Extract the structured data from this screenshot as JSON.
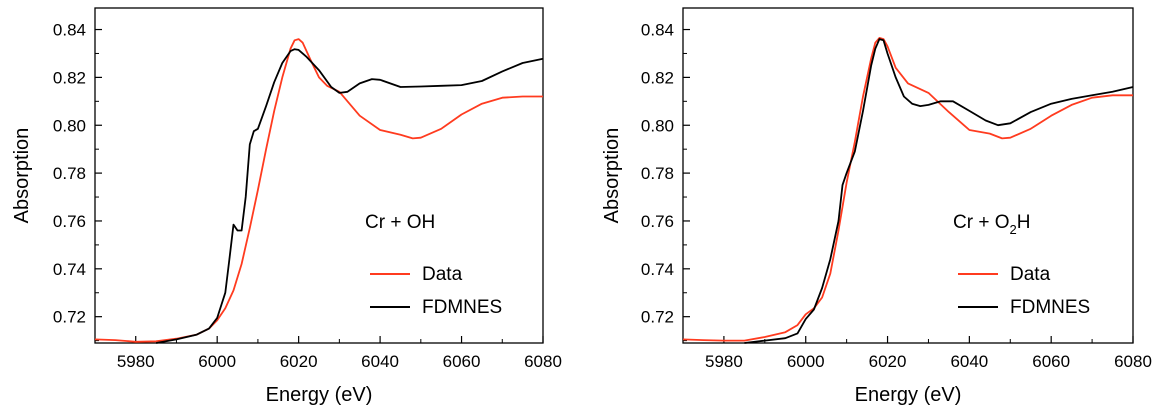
{
  "chart_data": [
    {
      "type": "line",
      "xlabel": "Energy (eV)",
      "ylabel": "Absorption",
      "xlim": [
        5970,
        6080
      ],
      "ylim": [
        0.709,
        0.849
      ],
      "xticks": [
        "5980",
        "6000",
        "6020",
        "6040",
        "6060",
        "6080"
      ],
      "yticks": [
        "0.72",
        "0.74",
        "0.76",
        "0.78",
        "0.80",
        "0.82",
        "0.84"
      ],
      "annotation": {
        "base": "Cr + OH",
        "sub": "",
        "tail": ""
      },
      "grid": false,
      "legend_position": "bottom-right",
      "series": [
        {
          "name": "Data",
          "color": "#ff3b1f",
          "points": [
            [
              5970,
              0.7105
            ],
            [
              5975,
              0.7102
            ],
            [
              5980,
              0.7095
            ],
            [
              5985,
              0.7097
            ],
            [
              5990,
              0.7108
            ],
            [
              5995,
              0.7125
            ],
            [
              5998,
              0.715
            ],
            [
              6000,
              0.7185
            ],
            [
              6002,
              0.7235
            ],
            [
              6004,
              0.731
            ],
            [
              6006,
              0.742
            ],
            [
              6008,
              0.757
            ],
            [
              6010,
              0.773
            ],
            [
              6012,
              0.79
            ],
            [
              6014,
              0.806
            ],
            [
              6016,
              0.82
            ],
            [
              6018,
              0.832
            ],
            [
              6019,
              0.8355
            ],
            [
              6020,
              0.836
            ],
            [
              6021,
              0.8345
            ],
            [
              6023,
              0.827
            ],
            [
              6025,
              0.82
            ],
            [
              6027,
              0.8165
            ],
            [
              6030,
              0.814
            ],
            [
              6035,
              0.804
            ],
            [
              6040,
              0.798
            ],
            [
              6045,
              0.796
            ],
            [
              6048,
              0.7945
            ],
            [
              6050,
              0.7948
            ],
            [
              6055,
              0.7985
            ],
            [
              6060,
              0.8045
            ],
            [
              6065,
              0.809
            ],
            [
              6070,
              0.8115
            ],
            [
              6075,
              0.812
            ],
            [
              6080,
              0.812
            ]
          ]
        },
        {
          "name": "FDMNES",
          "color": "#000000",
          "points": [
            [
              5985,
              0.709
            ],
            [
              5990,
              0.7105
            ],
            [
              5995,
              0.7125
            ],
            [
              5998,
              0.715
            ],
            [
              6000,
              0.7195
            ],
            [
              6002,
              0.73
            ],
            [
              6003,
              0.744
            ],
            [
              6004,
              0.7585
            ],
            [
              6005,
              0.756
            ],
            [
              6006,
              0.756
            ],
            [
              6007,
              0.77
            ],
            [
              6008,
              0.792
            ],
            [
              6009,
              0.7975
            ],
            [
              6010,
              0.7985
            ],
            [
              6012,
              0.808
            ],
            [
              6014,
              0.818
            ],
            [
              6016,
              0.826
            ],
            [
              6018,
              0.831
            ],
            [
              6019,
              0.8318
            ],
            [
              6020,
              0.8315
            ],
            [
              6022,
              0.8285
            ],
            [
              6025,
              0.823
            ],
            [
              6028,
              0.816
            ],
            [
              6030,
              0.8135
            ],
            [
              6032,
              0.814
            ],
            [
              6035,
              0.8175
            ],
            [
              6038,
              0.8193
            ],
            [
              6040,
              0.819
            ],
            [
              6045,
              0.816
            ],
            [
              6050,
              0.8162
            ],
            [
              6055,
              0.8165
            ],
            [
              6060,
              0.8168
            ],
            [
              6065,
              0.8185
            ],
            [
              6070,
              0.8225
            ],
            [
              6075,
              0.826
            ],
            [
              6080,
              0.8278
            ]
          ]
        }
      ]
    },
    {
      "type": "line",
      "xlabel": "Energy (eV)",
      "ylabel": "Absorption",
      "xlim": [
        5970,
        6080
      ],
      "ylim": [
        0.709,
        0.849
      ],
      "xticks": [
        "5980",
        "6000",
        "6020",
        "6040",
        "6060",
        "6080"
      ],
      "yticks": [
        "0.72",
        "0.74",
        "0.76",
        "0.78",
        "0.80",
        "0.82",
        "0.84"
      ],
      "annotation": {
        "base": "Cr + O",
        "sub": "2",
        "tail": "H"
      },
      "grid": false,
      "legend_position": "bottom-right",
      "series": [
        {
          "name": "Data",
          "color": "#ff3b1f",
          "points": [
            [
              5970,
              0.7105
            ],
            [
              5975,
              0.7102
            ],
            [
              5980,
              0.71
            ],
            [
              5985,
              0.71
            ],
            [
              5990,
              0.7115
            ],
            [
              5995,
              0.7135
            ],
            [
              5998,
              0.7165
            ],
            [
              6000,
              0.721
            ],
            [
              6002,
              0.7235
            ],
            [
              6004,
              0.728
            ],
            [
              6006,
              0.738
            ],
            [
              6008,
              0.756
            ],
            [
              6010,
              0.776
            ],
            [
              6012,
              0.793
            ],
            [
              6014,
              0.812
            ],
            [
              6016,
              0.828
            ],
            [
              6017,
              0.8345
            ],
            [
              6018,
              0.8365
            ],
            [
              6019,
              0.836
            ],
            [
              6020,
              0.833
            ],
            [
              6022,
              0.824
            ],
            [
              6025,
              0.8175
            ],
            [
              6030,
              0.8135
            ],
            [
              6035,
              0.8055
            ],
            [
              6040,
              0.798
            ],
            [
              6045,
              0.7965
            ],
            [
              6048,
              0.7945
            ],
            [
              6050,
              0.7948
            ],
            [
              6055,
              0.7985
            ],
            [
              6060,
              0.804
            ],
            [
              6065,
              0.8085
            ],
            [
              6070,
              0.8115
            ],
            [
              6075,
              0.8125
            ],
            [
              6080,
              0.8125
            ]
          ]
        },
        {
          "name": "FDMNES",
          "color": "#000000",
          "points": [
            [
              5985,
              0.709
            ],
            [
              5990,
              0.71
            ],
            [
              5995,
              0.711
            ],
            [
              5998,
              0.713
            ],
            [
              6000,
              0.719
            ],
            [
              6002,
              0.723
            ],
            [
              6004,
              0.732
            ],
            [
              6006,
              0.744
            ],
            [
              6008,
              0.76
            ],
            [
              6009,
              0.775
            ],
            [
              6010,
              0.78
            ],
            [
              6012,
              0.789
            ],
            [
              6014,
              0.806
            ],
            [
              6016,
              0.825
            ],
            [
              6017,
              0.832
            ],
            [
              6018,
              0.836
            ],
            [
              6019,
              0.8355
            ],
            [
              6020,
              0.83
            ],
            [
              6022,
              0.82
            ],
            [
              6024,
              0.812
            ],
            [
              6026,
              0.809
            ],
            [
              6028,
              0.808
            ],
            [
              6030,
              0.8085
            ],
            [
              6033,
              0.81
            ],
            [
              6036,
              0.81
            ],
            [
              6040,
              0.806
            ],
            [
              6044,
              0.802
            ],
            [
              6047,
              0.8
            ],
            [
              6050,
              0.8008
            ],
            [
              6055,
              0.8055
            ],
            [
              6060,
              0.809
            ],
            [
              6065,
              0.811
            ],
            [
              6070,
              0.8125
            ],
            [
              6075,
              0.814
            ],
            [
              6080,
              0.816
            ]
          ]
        }
      ]
    }
  ]
}
